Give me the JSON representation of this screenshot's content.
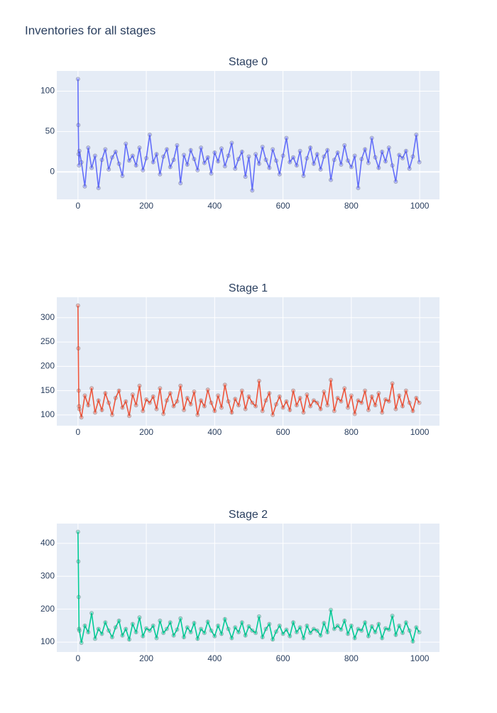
{
  "title": "Inventories for all stages",
  "chart_data": [
    {
      "type": "line",
      "title": "Stage 0",
      "color": "#636efa",
      "grid": true,
      "xlim": [
        -62,
        1058
      ],
      "xticks": [
        0,
        200,
        400,
        600,
        800,
        1000
      ],
      "ylim": [
        -34,
        125
      ],
      "yticks": [
        0,
        50,
        100
      ],
      "x": [
        0,
        1,
        2,
        3,
        4,
        10,
        20,
        30,
        40,
        50,
        60,
        70,
        80,
        90,
        100,
        110,
        120,
        130,
        140,
        150,
        160,
        170,
        180,
        190,
        200,
        210,
        220,
        230,
        240,
        250,
        260,
        270,
        280,
        290,
        300,
        310,
        320,
        330,
        340,
        350,
        360,
        370,
        380,
        390,
        400,
        410,
        420,
        430,
        440,
        450,
        460,
        470,
        480,
        490,
        500,
        510,
        520,
        530,
        540,
        550,
        560,
        570,
        580,
        590,
        600,
        610,
        620,
        630,
        640,
        650,
        660,
        670,
        680,
        690,
        700,
        710,
        720,
        730,
        740,
        750,
        760,
        770,
        780,
        790,
        800,
        810,
        820,
        830,
        840,
        850,
        860,
        870,
        880,
        890,
        900,
        910,
        920,
        930,
        940,
        950,
        960,
        970,
        980,
        990,
        999
      ],
      "values": [
        115,
        58,
        22,
        8,
        26,
        12,
        -18,
        30,
        5,
        20,
        -20,
        15,
        28,
        3,
        18,
        25,
        10,
        -5,
        35,
        14,
        20,
        8,
        30,
        2,
        17,
        46,
        12,
        22,
        -3,
        19,
        28,
        6,
        15,
        33,
        -14,
        21,
        9,
        27,
        16,
        2,
        30,
        11,
        18,
        -2,
        24,
        13,
        29,
        7,
        20,
        36,
        4,
        16,
        25,
        -6,
        19,
        -23,
        22,
        10,
        31,
        15,
        5,
        28,
        14,
        -3,
        20,
        42,
        12,
        18,
        8,
        26,
        -5,
        17,
        30,
        10,
        22,
        3,
        19,
        27,
        -10,
        15,
        24,
        9,
        33,
        14,
        6,
        20,
        -20,
        16,
        28,
        11,
        42,
        18,
        5,
        25,
        13,
        30,
        8,
        -12,
        21,
        17,
        26,
        4,
        19,
        46,
        12
      ]
    },
    {
      "type": "line",
      "title": "Stage 1",
      "color": "#EF553B",
      "grid": true,
      "xlim": [
        -62,
        1058
      ],
      "xticks": [
        0,
        200,
        400,
        600,
        800,
        1000
      ],
      "ylim": [
        78,
        342
      ],
      "yticks": [
        100,
        150,
        200,
        250,
        300
      ],
      "x": [
        0,
        1,
        2,
        3,
        4,
        10,
        20,
        30,
        40,
        50,
        60,
        70,
        80,
        90,
        100,
        110,
        120,
        130,
        140,
        150,
        160,
        170,
        180,
        190,
        200,
        210,
        220,
        230,
        240,
        250,
        260,
        270,
        280,
        290,
        300,
        310,
        320,
        330,
        340,
        350,
        360,
        370,
        380,
        390,
        400,
        410,
        420,
        430,
        440,
        450,
        460,
        470,
        480,
        490,
        500,
        510,
        520,
        530,
        540,
        550,
        560,
        570,
        580,
        590,
        600,
        610,
        620,
        630,
        640,
        650,
        660,
        670,
        680,
        690,
        700,
        710,
        720,
        730,
        740,
        750,
        760,
        770,
        780,
        790,
        800,
        810,
        820,
        830,
        840,
        850,
        860,
        870,
        880,
        890,
        900,
        910,
        920,
        930,
        940,
        950,
        960,
        970,
        980,
        990,
        999
      ],
      "values": [
        325,
        237,
        150,
        118,
        112,
        95,
        140,
        120,
        155,
        105,
        130,
        110,
        145,
        125,
        100,
        135,
        150,
        115,
        128,
        98,
        142,
        120,
        160,
        108,
        132,
        125,
        138,
        112,
        155,
        102,
        130,
        145,
        118,
        128,
        160,
        110,
        135,
        122,
        148,
        100,
        130,
        118,
        152,
        125,
        108,
        140,
        115,
        162,
        128,
        105,
        133,
        120,
        150,
        112,
        138,
        125,
        118,
        170,
        108,
        130,
        145,
        100,
        122,
        138,
        115,
        128,
        110,
        150,
        120,
        135,
        105,
        142,
        118,
        130,
        125,
        112,
        148,
        120,
        172,
        108,
        135,
        128,
        155,
        115,
        140,
        102,
        130,
        125,
        150,
        110,
        138,
        120,
        145,
        105,
        132,
        128,
        165,
        112,
        140,
        118,
        150,
        125,
        108,
        135,
        125
      ]
    },
    {
      "type": "line",
      "title": "Stage 2",
      "color": "#00cc96",
      "grid": true,
      "xlim": [
        -62,
        1058
      ],
      "xticks": [
        0,
        200,
        400,
        600,
        800,
        1000
      ],
      "ylim": [
        70,
        460
      ],
      "yticks": [
        100,
        200,
        300,
        400
      ],
      "x": [
        0,
        1,
        2,
        3,
        4,
        10,
        20,
        30,
        40,
        50,
        60,
        70,
        80,
        90,
        100,
        110,
        120,
        130,
        140,
        150,
        160,
        170,
        180,
        190,
        200,
        210,
        220,
        230,
        240,
        250,
        260,
        270,
        280,
        290,
        300,
        310,
        320,
        330,
        340,
        350,
        360,
        370,
        380,
        390,
        400,
        410,
        420,
        430,
        440,
        450,
        460,
        470,
        480,
        490,
        500,
        510,
        520,
        530,
        540,
        550,
        560,
        570,
        580,
        590,
        600,
        610,
        620,
        630,
        640,
        650,
        660,
        670,
        680,
        690,
        700,
        710,
        720,
        730,
        740,
        750,
        760,
        770,
        780,
        790,
        800,
        810,
        820,
        830,
        840,
        850,
        860,
        870,
        880,
        890,
        900,
        910,
        920,
        930,
        940,
        950,
        960,
        970,
        980,
        990,
        999
      ],
      "values": [
        435,
        345,
        237,
        140,
        135,
        98,
        150,
        130,
        188,
        110,
        140,
        125,
        160,
        135,
        115,
        145,
        165,
        120,
        140,
        108,
        155,
        130,
        175,
        118,
        142,
        135,
        150,
        112,
        165,
        128,
        140,
        160,
        120,
        138,
        172,
        115,
        145,
        130,
        158,
        110,
        140,
        128,
        162,
        135,
        118,
        150,
        125,
        170,
        140,
        112,
        145,
        130,
        160,
        120,
        148,
        135,
        128,
        178,
        115,
        140,
        155,
        108,
        132,
        150,
        125,
        138,
        118,
        160,
        130,
        145,
        112,
        150,
        128,
        140,
        135,
        120,
        158,
        130,
        198,
        140,
        150,
        138,
        165,
        125,
        150,
        112,
        140,
        135,
        160,
        118,
        148,
        130,
        155,
        112,
        142,
        138,
        180,
        122,
        150,
        128,
        160,
        135,
        102,
        145,
        130
      ]
    }
  ]
}
